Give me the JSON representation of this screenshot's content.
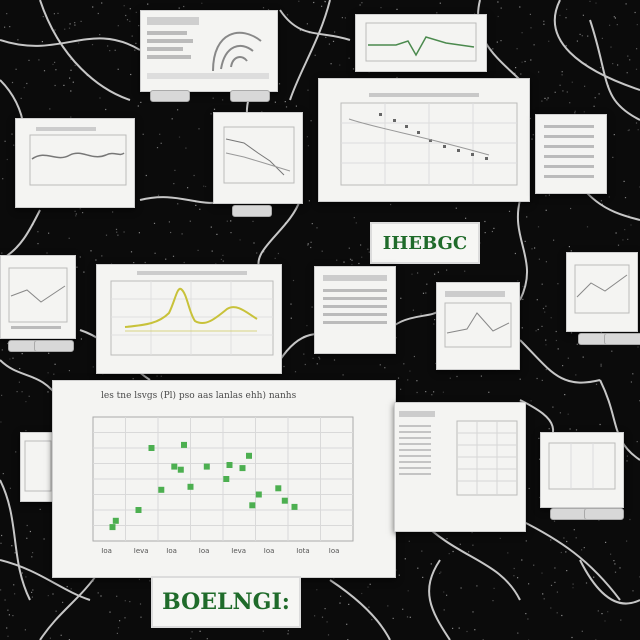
{
  "labels": {
    "top_label": "IHEBGC",
    "bottom_label": "BOELNGI:"
  },
  "main_chart": {
    "caption": "les tne lsvgs (Pl) pso aas lanlas ehh) nanhs",
    "x_ticks": [
      "Ioa",
      "Ieva",
      "Ioa",
      "Ioa",
      "Ieva",
      "Ioa",
      "Iota",
      "Ioa"
    ]
  },
  "colors": {
    "background": "#0b0b0b",
    "card": "#f4f4f2",
    "scatter_green": "#4caf50",
    "peak_line": "#c8c23a",
    "label_green": "#1f6b2a"
  },
  "chart_data": {
    "type": "scatter",
    "xlabel": "",
    "ylabel": "",
    "x": [
      1.1,
      1.2,
      1.9,
      2.3,
      2.6,
      3.0,
      3.2,
      3.3,
      3.5,
      4.0,
      4.6,
      4.7,
      5.1,
      5.3,
      5.4,
      5.6,
      6.2,
      6.4,
      6.7
    ],
    "y": [
      0.9,
      1.3,
      2.0,
      6.0,
      3.3,
      4.8,
      4.6,
      6.2,
      3.5,
      4.8,
      4.0,
      4.9,
      4.7,
      5.5,
      2.3,
      3.0,
      3.4,
      2.6,
      2.2
    ],
    "xlim": [
      0.5,
      8.5
    ],
    "ylim": [
      0,
      8
    ]
  }
}
